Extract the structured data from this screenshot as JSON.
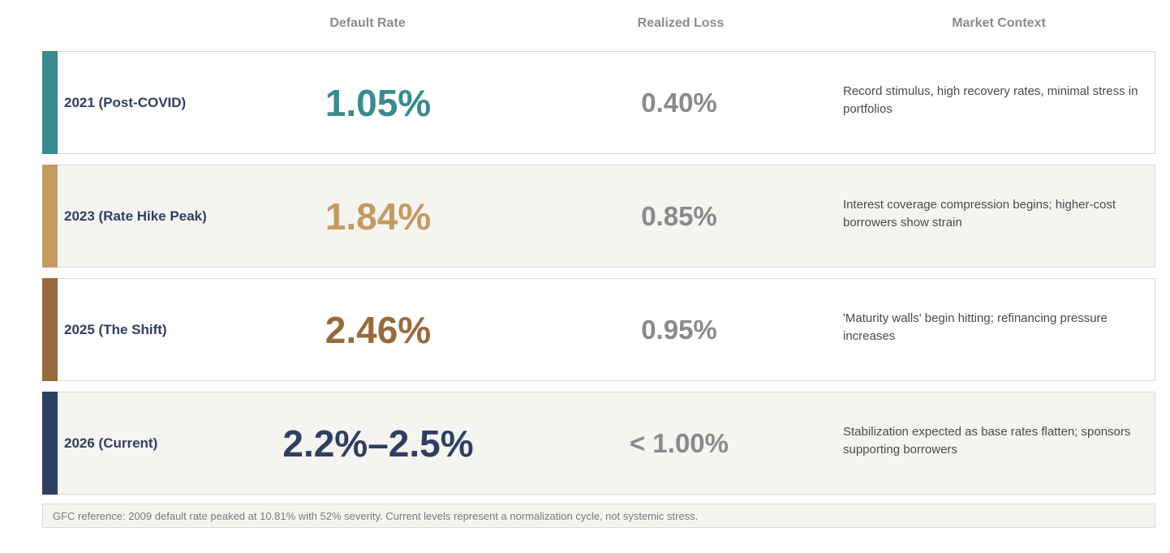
{
  "headers": {
    "default_rate": "Default Rate",
    "realized_loss": "Realized Loss",
    "market_context": "Market Context"
  },
  "rows": [
    {
      "period": "2021 (Post-COVID)",
      "default_rate": "1.05%",
      "realized_loss": "0.40%",
      "context": "Record stimulus, high recovery rates, minimal stress in portfolios",
      "color": "#3a8a8f"
    },
    {
      "period": "2023 (Rate Hike Peak)",
      "default_rate": "1.84%",
      "realized_loss": "0.85%",
      "context": "Interest coverage compression begins; higher-cost borrowers show strain",
      "color": "#c49a63"
    },
    {
      "period": "2025 (The Shift)",
      "default_rate": "2.46%",
      "realized_loss": "0.95%",
      "context": "'Maturity walls' begin hitting; refinancing pressure increases",
      "color": "#996a3d"
    },
    {
      "period": "2026 (Current)",
      "default_rate": "2.2%–2.5%",
      "realized_loss": "< 1.00%",
      "context": "Stabilization expected as base rates flatten; sponsors supporting borrowers",
      "color": "#2f3f63"
    }
  ],
  "footnote": "GFC reference: 2009 default rate peaked at 10.81% with 52% severity. Current levels represent a normalization cycle, not systemic stress."
}
